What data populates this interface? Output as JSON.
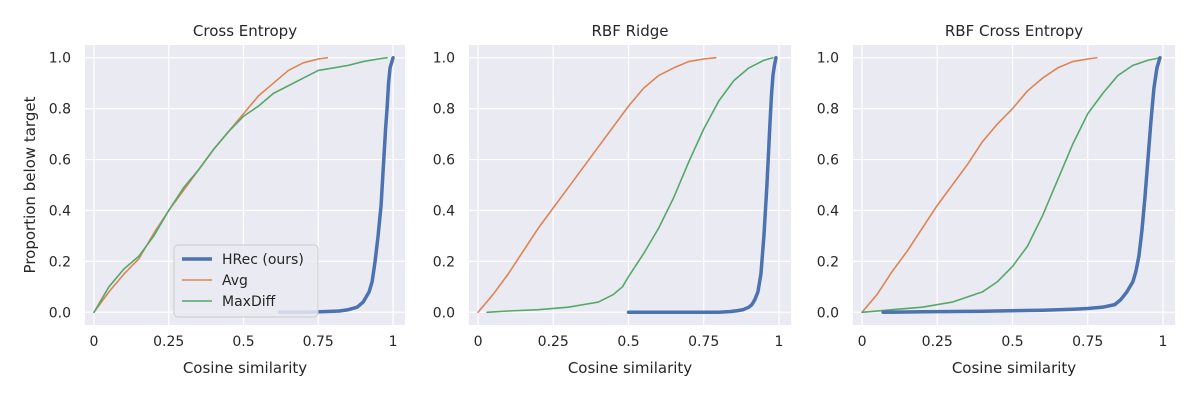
{
  "colors": {
    "background": "#eaeaf2",
    "grid": "#ffffff",
    "text": "#262626"
  },
  "legend": {
    "location": "lower-right (first panel)",
    "entries": [
      "HRec (ours)",
      "Avg",
      "MaxDiff"
    ]
  },
  "chart_data": [
    {
      "type": "line",
      "title": "Cross Entropy",
      "xlabel": "Cosine similarity",
      "ylabel": "Proportion below target",
      "xlim": [
        -0.03,
        1.04
      ],
      "ylim": [
        -0.05,
        1.05
      ],
      "xticks": [
        {
          "value": 0,
          "label": "0"
        },
        {
          "value": 0.25,
          "label": "0.25"
        },
        {
          "value": 0.5,
          "label": "0.5"
        },
        {
          "value": 0.75,
          "label": "0.75"
        },
        {
          "value": 1,
          "label": "1"
        }
      ],
      "yticks": [
        {
          "value": 0.0,
          "label": "0.0"
        },
        {
          "value": 0.2,
          "label": "0.2"
        },
        {
          "value": 0.4,
          "label": "0.4"
        },
        {
          "value": 0.6,
          "label": "0.6"
        },
        {
          "value": 0.8,
          "label": "0.8"
        },
        {
          "value": 1.0,
          "label": "1.0"
        }
      ],
      "grid": true,
      "series": [
        {
          "name": "HRec (ours)",
          "color": "#4c72b0",
          "width": 3.5,
          "x": [
            0.62,
            0.7,
            0.78,
            0.82,
            0.85,
            0.88,
            0.9,
            0.92,
            0.93,
            0.94,
            0.95,
            0.96,
            0.965,
            0.97,
            0.975,
            0.98,
            0.985,
            0.99,
            1.0
          ],
          "y": [
            0.0,
            0.0,
            0.003,
            0.005,
            0.01,
            0.02,
            0.04,
            0.08,
            0.12,
            0.2,
            0.3,
            0.42,
            0.52,
            0.62,
            0.72,
            0.8,
            0.9,
            0.96,
            1.0
          ]
        },
        {
          "name": "Avg",
          "color": "#dd8452",
          "width": 1.6,
          "x": [
            0.0,
            0.05,
            0.1,
            0.15,
            0.2,
            0.25,
            0.3,
            0.35,
            0.4,
            0.45,
            0.5,
            0.55,
            0.6,
            0.65,
            0.7,
            0.75,
            0.78
          ],
          "y": [
            0.0,
            0.08,
            0.15,
            0.21,
            0.31,
            0.4,
            0.48,
            0.56,
            0.64,
            0.71,
            0.78,
            0.85,
            0.9,
            0.95,
            0.98,
            0.995,
            1.0
          ]
        },
        {
          "name": "MaxDiff",
          "color": "#55a868",
          "width": 1.6,
          "x": [
            0.0,
            0.05,
            0.1,
            0.15,
            0.2,
            0.25,
            0.3,
            0.35,
            0.4,
            0.45,
            0.5,
            0.55,
            0.6,
            0.65,
            0.7,
            0.75,
            0.8,
            0.85,
            0.9,
            0.95,
            0.98
          ],
          "y": [
            0.0,
            0.1,
            0.17,
            0.22,
            0.3,
            0.4,
            0.49,
            0.56,
            0.64,
            0.71,
            0.77,
            0.81,
            0.86,
            0.89,
            0.92,
            0.95,
            0.96,
            0.97,
            0.985,
            0.995,
            1.0
          ]
        }
      ]
    },
    {
      "type": "line",
      "title": "RBF Ridge",
      "xlabel": "Cosine similarity",
      "ylabel": "",
      "xlim": [
        -0.03,
        1.04
      ],
      "ylim": [
        -0.05,
        1.05
      ],
      "xticks": [
        {
          "value": 0,
          "label": "0"
        },
        {
          "value": 0.25,
          "label": "0.25"
        },
        {
          "value": 0.5,
          "label": "0.5"
        },
        {
          "value": 0.75,
          "label": "0.75"
        },
        {
          "value": 1,
          "label": "1"
        }
      ],
      "yticks": [
        {
          "value": 0.0,
          "label": "0.0"
        },
        {
          "value": 0.2,
          "label": "0.2"
        },
        {
          "value": 0.4,
          "label": "0.4"
        },
        {
          "value": 0.6,
          "label": "0.6"
        },
        {
          "value": 0.8,
          "label": "0.8"
        },
        {
          "value": 1.0,
          "label": "1.0"
        }
      ],
      "grid": true,
      "series": [
        {
          "name": "HRec (ours)",
          "color": "#4c72b0",
          "width": 3.5,
          "x": [
            0.5,
            0.6,
            0.7,
            0.8,
            0.84,
            0.86,
            0.88,
            0.9,
            0.91,
            0.92,
            0.93,
            0.94,
            0.95,
            0.96,
            0.965,
            0.97,
            0.975,
            0.98,
            0.985,
            0.99
          ],
          "y": [
            0.0,
            0.0,
            0.0,
            0.0,
            0.003,
            0.006,
            0.01,
            0.02,
            0.03,
            0.05,
            0.08,
            0.15,
            0.3,
            0.5,
            0.62,
            0.74,
            0.85,
            0.93,
            0.97,
            1.0
          ]
        },
        {
          "name": "Avg",
          "color": "#dd8452",
          "width": 1.6,
          "x": [
            0.0,
            0.05,
            0.1,
            0.15,
            0.2,
            0.25,
            0.3,
            0.35,
            0.4,
            0.45,
            0.5,
            0.55,
            0.6,
            0.65,
            0.7,
            0.75,
            0.79
          ],
          "y": [
            0.0,
            0.07,
            0.15,
            0.24,
            0.33,
            0.41,
            0.49,
            0.57,
            0.65,
            0.73,
            0.81,
            0.88,
            0.93,
            0.96,
            0.985,
            0.995,
            1.0
          ]
        },
        {
          "name": "MaxDiff",
          "color": "#55a868",
          "width": 1.6,
          "x": [
            0.03,
            0.1,
            0.2,
            0.3,
            0.35,
            0.4,
            0.45,
            0.48,
            0.5,
            0.55,
            0.6,
            0.65,
            0.7,
            0.75,
            0.8,
            0.85,
            0.9,
            0.95,
            0.98
          ],
          "y": [
            0.0,
            0.005,
            0.01,
            0.02,
            0.03,
            0.04,
            0.07,
            0.1,
            0.14,
            0.23,
            0.33,
            0.45,
            0.59,
            0.72,
            0.83,
            0.91,
            0.96,
            0.99,
            1.0
          ]
        }
      ]
    },
    {
      "type": "line",
      "title": "RBF Cross Entropy",
      "xlabel": "Cosine similarity",
      "ylabel": "",
      "xlim": [
        -0.03,
        1.04
      ],
      "ylim": [
        -0.05,
        1.05
      ],
      "xticks": [
        {
          "value": 0,
          "label": "0"
        },
        {
          "value": 0.25,
          "label": "0.25"
        },
        {
          "value": 0.5,
          "label": "0.5"
        },
        {
          "value": 0.75,
          "label": "0.75"
        },
        {
          "value": 1,
          "label": "1"
        }
      ],
      "yticks": [
        {
          "value": 0.0,
          "label": "0.0"
        },
        {
          "value": 0.2,
          "label": "0.2"
        },
        {
          "value": 0.4,
          "label": "0.4"
        },
        {
          "value": 0.6,
          "label": "0.6"
        },
        {
          "value": 0.8,
          "label": "0.8"
        },
        {
          "value": 1.0,
          "label": "1.0"
        }
      ],
      "grid": true,
      "series": [
        {
          "name": "HRec (ours)",
          "color": "#4c72b0",
          "width": 3.5,
          "x": [
            0.07,
            0.2,
            0.4,
            0.6,
            0.7,
            0.75,
            0.8,
            0.84,
            0.86,
            0.88,
            0.9,
            0.91,
            0.92,
            0.93,
            0.94,
            0.95,
            0.96,
            0.97,
            0.98,
            0.99
          ],
          "y": [
            0.0,
            0.002,
            0.004,
            0.008,
            0.012,
            0.015,
            0.02,
            0.03,
            0.05,
            0.08,
            0.12,
            0.16,
            0.22,
            0.32,
            0.45,
            0.6,
            0.75,
            0.88,
            0.96,
            1.0
          ]
        },
        {
          "name": "Avg",
          "color": "#dd8452",
          "width": 1.6,
          "x": [
            0.0,
            0.05,
            0.1,
            0.15,
            0.2,
            0.25,
            0.3,
            0.35,
            0.4,
            0.45,
            0.5,
            0.55,
            0.6,
            0.65,
            0.7,
            0.75,
            0.78
          ],
          "y": [
            0.0,
            0.07,
            0.16,
            0.24,
            0.33,
            0.42,
            0.5,
            0.58,
            0.67,
            0.74,
            0.8,
            0.87,
            0.92,
            0.96,
            0.985,
            0.995,
            1.0
          ]
        },
        {
          "name": "MaxDiff",
          "color": "#55a868",
          "width": 1.6,
          "x": [
            0.0,
            0.1,
            0.2,
            0.3,
            0.4,
            0.45,
            0.5,
            0.55,
            0.6,
            0.65,
            0.7,
            0.75,
            0.8,
            0.85,
            0.9,
            0.95,
            0.99
          ],
          "y": [
            0.0,
            0.01,
            0.02,
            0.04,
            0.08,
            0.12,
            0.18,
            0.26,
            0.38,
            0.52,
            0.66,
            0.78,
            0.86,
            0.93,
            0.97,
            0.99,
            1.0
          ]
        }
      ]
    }
  ]
}
